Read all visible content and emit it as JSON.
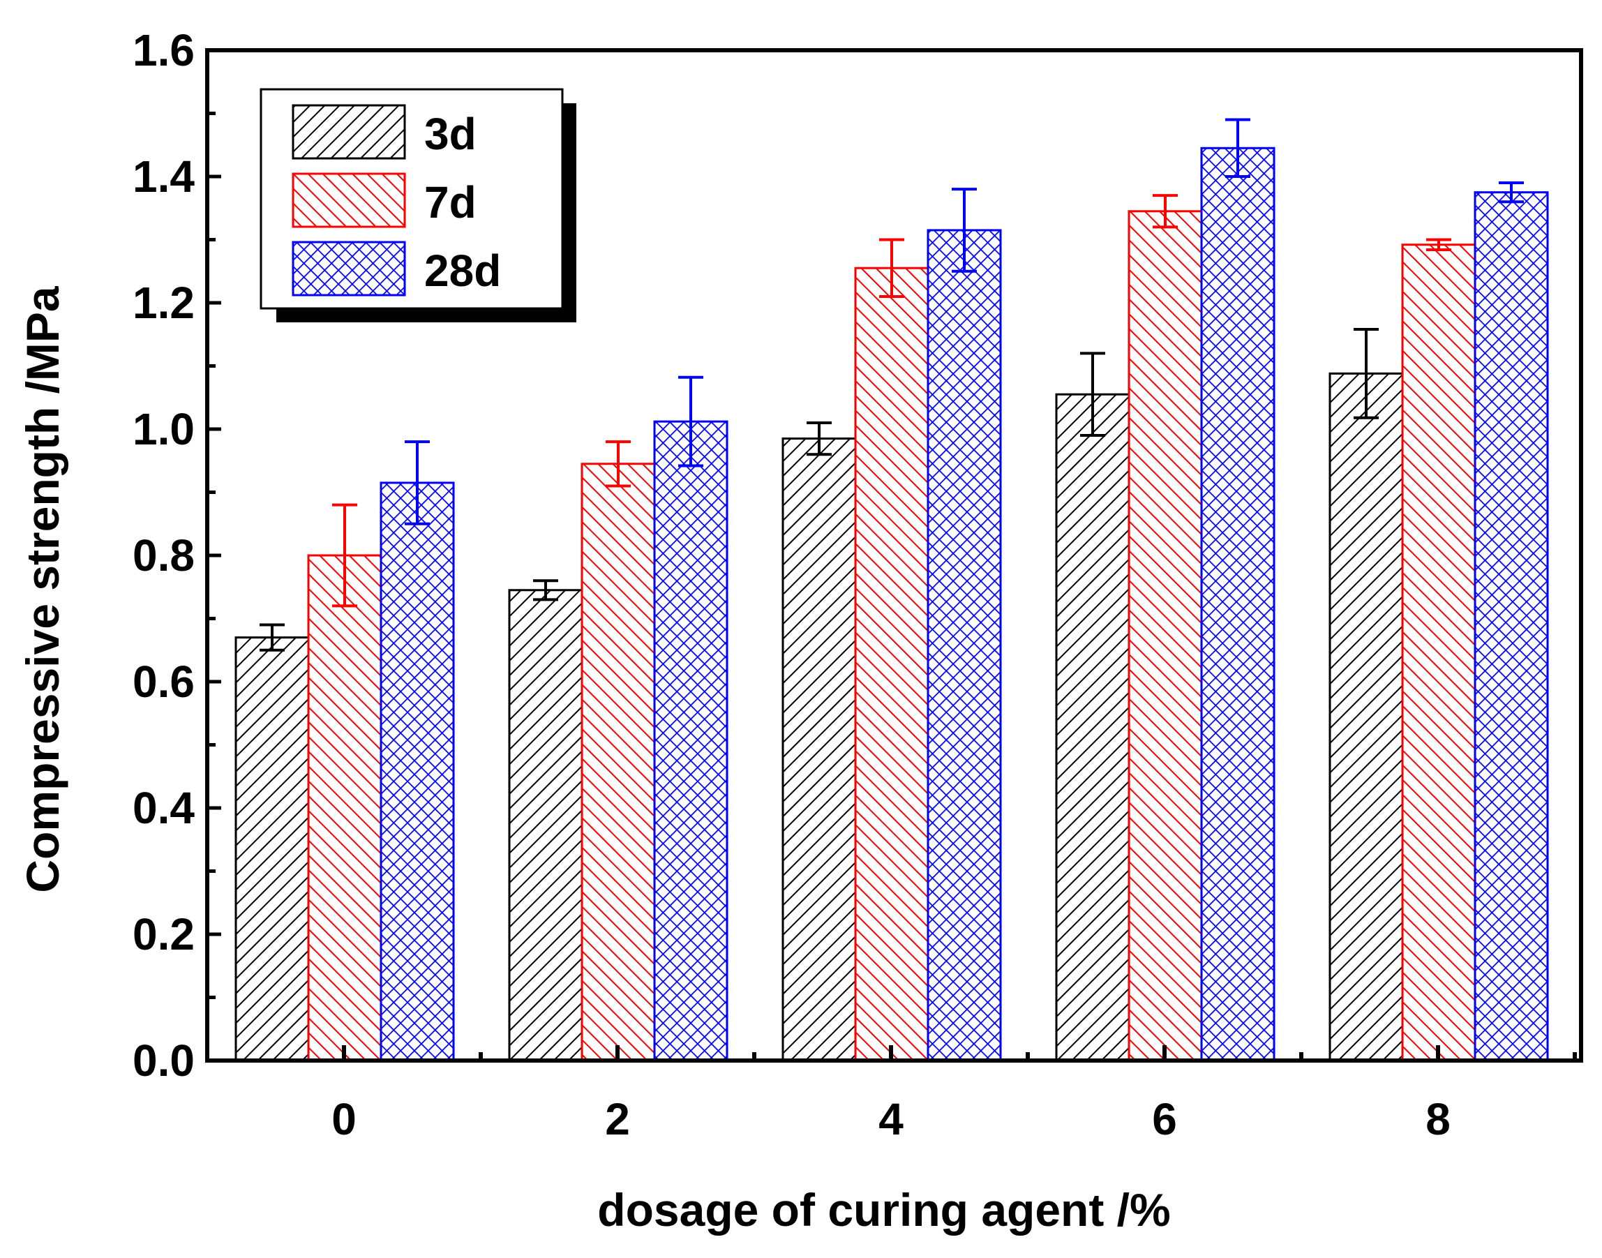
{
  "chart_data": {
    "type": "bar",
    "title": "",
    "xlabel": "dosage of curing agent /%",
    "ylabel": "Compressive strength /MPa",
    "categories": [
      "0",
      "2",
      "4",
      "6",
      "8"
    ],
    "ylim": [
      0,
      1.6
    ],
    "yticks": [
      "0.0",
      "0.2",
      "0.4",
      "0.6",
      "0.8",
      "1.0",
      "1.2",
      "1.4",
      "1.6"
    ],
    "legend_position": "top-left",
    "series": [
      {
        "name": "3d",
        "color": "#000000",
        "pattern": "diagonal-hatch",
        "values": [
          0.67,
          0.745,
          0.985,
          1.055,
          1.088
        ],
        "errors": [
          0.02,
          0.015,
          0.025,
          0.065,
          0.07
        ]
      },
      {
        "name": "7d",
        "color": "#ff0000",
        "pattern": "back-diagonal-hatch",
        "values": [
          0.8,
          0.945,
          1.255,
          1.345,
          1.292
        ],
        "errors": [
          0.08,
          0.035,
          0.045,
          0.025,
          0.008
        ]
      },
      {
        "name": "28d",
        "color": "#0000ff",
        "pattern": "cross-hatch",
        "values": [
          0.915,
          1.012,
          1.315,
          1.445,
          1.375
        ],
        "errors": [
          0.065,
          0.07,
          0.065,
          0.045,
          0.015
        ]
      }
    ]
  }
}
